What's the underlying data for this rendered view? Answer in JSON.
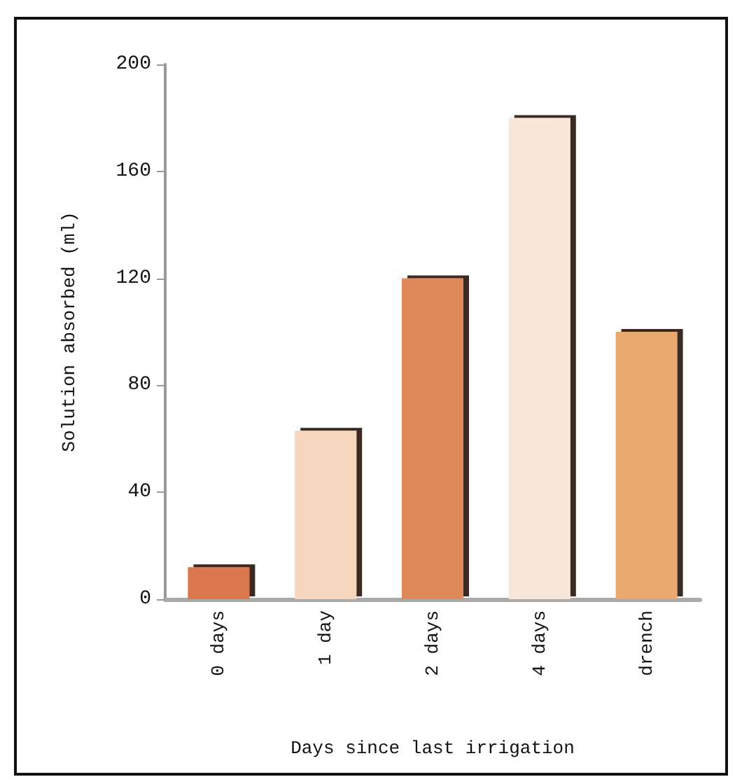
{
  "chart_data": {
    "type": "bar",
    "xlabel": "Days since last irrigation",
    "ylabel": "Solution absorbed (ml)",
    "categories": [
      "0 days",
      "1 day",
      "2 days",
      "4 days",
      "drench"
    ],
    "values": [
      12,
      63,
      120,
      180,
      100
    ],
    "colors": [
      "#d9774f",
      "#f5d5bc",
      "#e08a5c",
      "#f8e6d8",
      "#e8a86e"
    ],
    "ylim": [
      0,
      200
    ],
    "yticks": [
      0,
      40,
      80,
      120,
      160,
      200
    ],
    "grid": false
  }
}
